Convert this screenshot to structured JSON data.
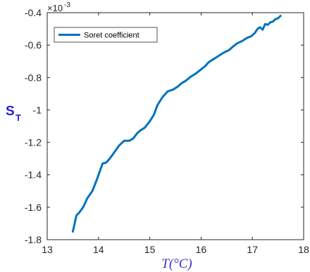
{
  "chart_data": {
    "type": "line",
    "xlabel": "T(°C)",
    "ylabel": "S",
    "ylabel_subscript": "T",
    "y_exponent": "×10",
    "y_exponent_power": "-3",
    "xlim": [
      13,
      18
    ],
    "ylim": [
      -1.8,
      -0.4
    ],
    "xticks": [
      13,
      14,
      15,
      16,
      17,
      18
    ],
    "xtick_labels": [
      "13",
      "14",
      "15",
      "16",
      "17",
      "18"
    ],
    "yticks": [
      -1.8,
      -1.6,
      -1.4,
      -1.2,
      -1.0,
      -0.8,
      -0.6,
      -0.4
    ],
    "ytick_labels": [
      "-1.8",
      "-1.6",
      "-1.4",
      "-1.2",
      "-1",
      "-0.8",
      "-0.6",
      "-0.4"
    ],
    "legend_placement": "top-left",
    "grid": false,
    "series": [
      {
        "name": "Soret coefficient",
        "color": "#0072BD",
        "x": [
          13.5,
          13.57,
          13.62,
          13.7,
          13.78,
          13.88,
          13.98,
          14.08,
          14.15,
          14.22,
          14.3,
          14.4,
          14.5,
          14.6,
          14.68,
          14.75,
          14.82,
          14.9,
          15.0,
          15.08,
          15.15,
          15.25,
          15.35,
          15.45,
          15.55,
          15.62,
          15.7,
          15.8,
          15.9,
          15.98,
          16.08,
          16.15,
          16.25,
          16.35,
          16.45,
          16.55,
          16.62,
          16.7,
          16.8,
          16.9,
          16.98,
          17.05,
          17.1,
          17.15,
          17.2,
          17.25,
          17.3,
          17.35,
          17.4,
          17.45,
          17.5,
          17.55
        ],
        "y": [
          -1.75,
          -1.65,
          -1.635,
          -1.6,
          -1.545,
          -1.5,
          -1.42,
          -1.33,
          -1.325,
          -1.3,
          -1.265,
          -1.22,
          -1.19,
          -1.19,
          -1.175,
          -1.145,
          -1.125,
          -1.11,
          -1.07,
          -1.03,
          -0.97,
          -0.92,
          -0.885,
          -0.875,
          -0.855,
          -0.835,
          -0.82,
          -0.795,
          -0.775,
          -0.755,
          -0.73,
          -0.705,
          -0.685,
          -0.665,
          -0.645,
          -0.63,
          -0.61,
          -0.59,
          -0.575,
          -0.555,
          -0.545,
          -0.525,
          -0.5,
          -0.49,
          -0.505,
          -0.47,
          -0.475,
          -0.46,
          -0.455,
          -0.44,
          -0.435,
          -0.42
        ]
      }
    ]
  }
}
